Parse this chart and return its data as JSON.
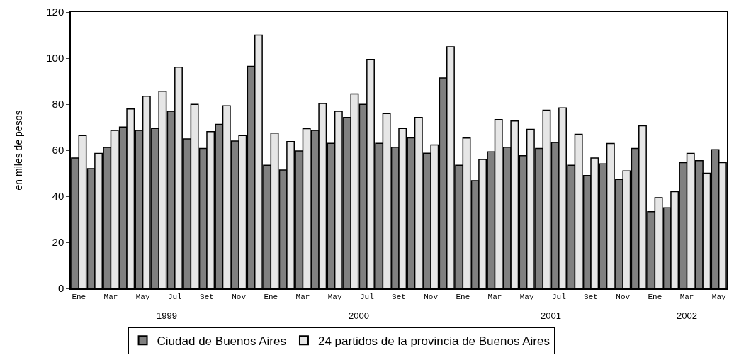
{
  "chart_data": {
    "type": "bar",
    "ylabel": "en miles de pesos",
    "categories": [
      "Ene",
      null,
      "Mar",
      null,
      "May",
      null,
      "Jul",
      null,
      "Set",
      null,
      "Nov",
      null,
      "Ene",
      null,
      "Mar",
      null,
      "May",
      null,
      "Jul",
      null,
      "Set",
      null,
      "Nov",
      null,
      "Ene",
      null,
      "Mar",
      null,
      "May",
      null,
      "Jul",
      null,
      "Set",
      null,
      "Nov",
      null,
      "Ene",
      null,
      "Mar",
      null,
      "May"
    ],
    "series": [
      {
        "name": "Ciudad de Buenos Aires",
        "color": "#808080",
        "values": [
          56.6,
          52.0,
          61.2,
          70.1,
          68.6,
          69.5,
          76.9,
          64.9,
          60.8,
          71.2,
          64.0,
          96.5,
          53.5,
          51.4,
          59.7,
          68.6,
          63.0,
          74.2,
          79.9,
          63.0,
          61.3,
          65.4,
          58.7,
          91.4,
          53.5,
          46.8,
          59.3,
          61.3,
          57.6,
          60.8,
          63.4,
          53.5,
          49.0,
          54.1,
          47.3,
          60.8,
          33.3,
          35.0,
          54.6,
          55.5,
          60.2
        ]
      },
      {
        "name": "24 partidos de la provincia de Buenos Aires",
        "color": "#e6e6e6",
        "values": [
          66.4,
          58.6,
          68.6,
          77.9,
          83.5,
          85.6,
          96.1,
          79.9,
          68.1,
          79.3,
          66.4,
          110.0,
          67.5,
          63.8,
          69.4,
          80.3,
          76.9,
          84.5,
          99.5,
          75.9,
          69.5,
          74.2,
          62.3,
          104.9,
          65.3,
          56.0,
          73.3,
          72.7,
          69.1,
          77.4,
          78.4,
          66.9,
          56.6,
          62.9,
          51.0,
          70.6,
          39.4,
          42.0,
          58.6,
          50.0,
          54.6
        ]
      }
    ],
    "annotations": [
      "1999",
      "2000",
      "2001",
      "2002"
    ],
    "ylim": [
      0,
      120
    ],
    "yticks": [
      0,
      20,
      40,
      60,
      80,
      100,
      120
    ],
    "grid": false,
    "legend": "bottom"
  }
}
